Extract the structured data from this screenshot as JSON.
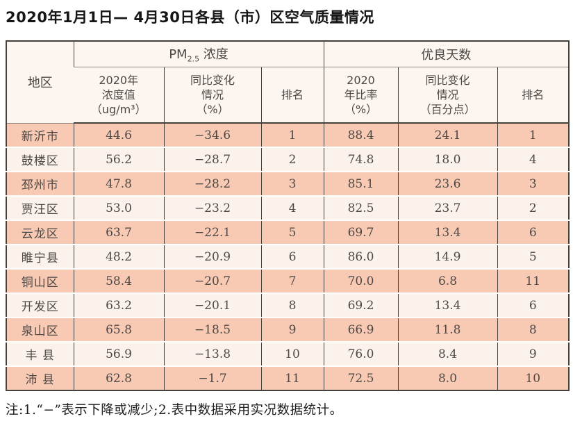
{
  "page": {
    "title": "2020年1月1日— 4月30日各县（市）区空气质量情况",
    "footnote": "注:1.“−”表示下降或减少;2.表中数据采用实况数据统计。"
  },
  "colors": {
    "row_salmon": "#f8cab4",
    "row_light": "#fcf2ec",
    "header_bg": "#fdf6f0",
    "border_dark": "#44403b",
    "border_gray": "#908a83",
    "text_main": "#4c4845"
  },
  "table": {
    "region_header": "地区",
    "pm_group": {
      "base": "PM",
      "sub": "2.5",
      "rest": " 浓度"
    },
    "good_group": "优良天数",
    "sub_headers": {
      "pm_value": "2020年\n浓度值\n（ug/m³）",
      "pm_change": "同比变化\n情况\n（%）",
      "pm_rank": "排名",
      "good_ratio": "2020\n年比率\n（%）",
      "good_change": "同比变化\n情况\n（百分点）",
      "good_rank": "排名"
    },
    "rows": [
      {
        "region": "新沂市",
        "pm_value": "44.6",
        "pm_change": "−34.6",
        "pm_rank": "1",
        "good_ratio": "88.4",
        "good_change": "24.1",
        "good_rank": "1"
      },
      {
        "region": "鼓楼区",
        "pm_value": "56.2",
        "pm_change": "−28.7",
        "pm_rank": "2",
        "good_ratio": "74.8",
        "good_change": "18.0",
        "good_rank": "4"
      },
      {
        "region": "邳州市",
        "pm_value": "47.8",
        "pm_change": "−28.2",
        "pm_rank": "3",
        "good_ratio": "85.1",
        "good_change": "23.6",
        "good_rank": "3"
      },
      {
        "region": "贾汪区",
        "pm_value": "53.0",
        "pm_change": "−23.2",
        "pm_rank": "4",
        "good_ratio": "82.5",
        "good_change": "23.7",
        "good_rank": "2"
      },
      {
        "region": "云龙区",
        "pm_value": "63.7",
        "pm_change": "−22.1",
        "pm_rank": "5",
        "good_ratio": "69.7",
        "good_change": "13.4",
        "good_rank": "6"
      },
      {
        "region": "睢宁县",
        "pm_value": "48.2",
        "pm_change": "−20.9",
        "pm_rank": "6",
        "good_ratio": "86.0",
        "good_change": "14.9",
        "good_rank": "5"
      },
      {
        "region": "铜山区",
        "pm_value": "58.4",
        "pm_change": "−20.7",
        "pm_rank": "7",
        "good_ratio": "70.0",
        "good_change": "6.8",
        "good_rank": "11"
      },
      {
        "region": "开发区",
        "pm_value": "63.2",
        "pm_change": "−20.1",
        "pm_rank": "8",
        "good_ratio": "69.2",
        "good_change": "13.4",
        "good_rank": "6"
      },
      {
        "region": "泉山区",
        "pm_value": "65.8",
        "pm_change": "−18.5",
        "pm_rank": "9",
        "good_ratio": "66.9",
        "good_change": "11.8",
        "good_rank": "8"
      },
      {
        "region": "丰 县",
        "pm_value": "56.9",
        "pm_change": "−13.8",
        "pm_rank": "10",
        "good_ratio": "76.0",
        "good_change": "8.4",
        "good_rank": "9"
      },
      {
        "region": "沛 县",
        "pm_value": "62.8",
        "pm_change": "−1.7",
        "pm_rank": "11",
        "good_ratio": "72.5",
        "good_change": "8.0",
        "good_rank": "10"
      }
    ]
  }
}
